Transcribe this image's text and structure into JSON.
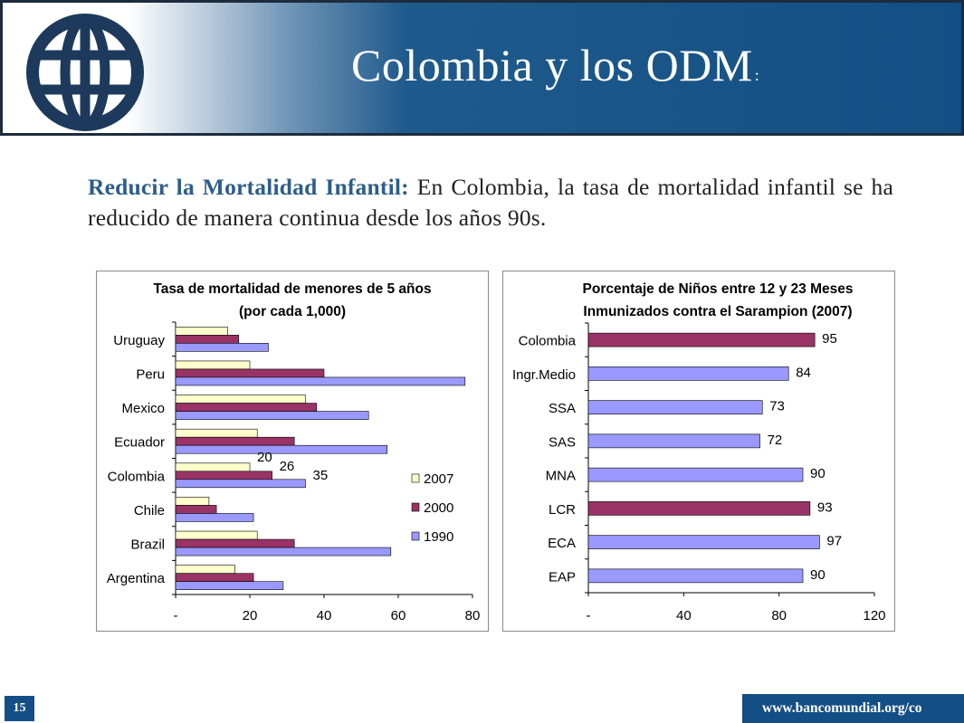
{
  "header": {
    "title": "Colombia y los ODM",
    "title_suffix": ":"
  },
  "intro": {
    "highlight": "Reducir la Mortalidad Infantil:",
    "text": " En Colombia, la tasa de mortalidad infantil  se ha reducido de manera continua desde los años 90s."
  },
  "footer": {
    "page_number": "15",
    "url": "www.bancomundial.org/co"
  },
  "colors": {
    "brand_blue": "#134f84",
    "s2007": "#ffffcc",
    "s2000": "#993366",
    "s1990": "#9999ff"
  },
  "chart_data": [
    {
      "type": "bar",
      "orientation": "horizontal",
      "title": "Tasa de mortalidad de menores de 5 años",
      "subtitle": "(por cada 1,000)",
      "categories": [
        "Uruguay",
        "Peru",
        "Mexico",
        "Ecuador",
        "Colombia",
        "Chile",
        "Brazil",
        "Argentina"
      ],
      "series": [
        {
          "name": "2007",
          "color": "#ffffcc",
          "values": [
            14,
            20,
            35,
            22,
            20,
            9,
            22,
            16
          ]
        },
        {
          "name": "2000",
          "color": "#993366",
          "values": [
            17,
            40,
            38,
            32,
            26,
            11,
            32,
            21
          ]
        },
        {
          "name": "1990",
          "color": "#9999ff",
          "values": [
            25,
            78,
            52,
            57,
            35,
            21,
            58,
            29
          ]
        }
      ],
      "data_labels": [
        {
          "category": "Colombia",
          "series": "2007",
          "text": "20"
        },
        {
          "category": "Colombia",
          "series": "2000",
          "text": "26"
        },
        {
          "category": "Colombia",
          "series": "1990",
          "text": "35"
        }
      ],
      "xlim": [
        0,
        80
      ],
      "xticks": [
        "-",
        "20",
        "40",
        "60",
        "80"
      ],
      "legend": "right"
    },
    {
      "type": "bar",
      "orientation": "horizontal",
      "title": "Porcentaje de Niños entre 12 y 23 Meses",
      "subtitle": "Inmunizados contra el Sarampion (2007)",
      "categories": [
        "Colombia",
        "Ingr.Medio",
        "SSA",
        "SAS",
        "MNA",
        "LCR",
        "ECA",
        "EAP"
      ],
      "values": [
        95,
        84,
        73,
        72,
        90,
        93,
        97,
        90
      ],
      "labels": [
        "95",
        "84",
        "73",
        "72",
        "90",
        "93",
        "97",
        "90"
      ],
      "bar_colors": [
        "#993366",
        "#9999ff",
        "#9999ff",
        "#9999ff",
        "#9999ff",
        "#993366",
        "#9999ff",
        "#9999ff"
      ],
      "xlim": [
        0,
        120
      ],
      "xticks": [
        "-",
        "40",
        "80",
        "120"
      ]
    }
  ]
}
